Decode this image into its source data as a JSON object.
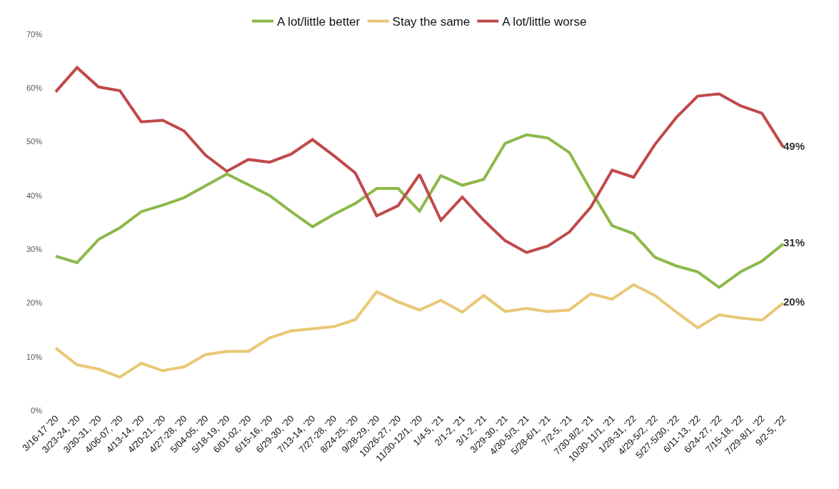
{
  "chart_data": {
    "type": "line",
    "categories": [
      "3/16-17 '20",
      "3/23-24, '20",
      "3/30-31, '20",
      "4/06-07, '20",
      "4/13-14, '20",
      "4/20-21, '20",
      "4/27-28, '20",
      "5/04-05, '20",
      "5/18-19, '20",
      "6/01-02, '20",
      "6/15-16, '20",
      "6/29-30, '20",
      "7/13-14, '20",
      "7/27-28, '20",
      "8/24-25, '20",
      "9/28-29, '20",
      "10/26-27, '20",
      "11/30-12/1, '20",
      "1/4-5, '21",
      "2/1-2, '21",
      "3/1-2, '21",
      "3/29-30, '21",
      "4/30-5/3, '21",
      "5/28-6/1, '21",
      "7/2-5, '21",
      "7/30-8/2, '21",
      "10/30-11/1, '21",
      "1/28-31, '22",
      "4/29-5/2, '22",
      "5/27-5/30, '22",
      "6/11-13, '22",
      "6/24-27, '22",
      "7/15-18, '22",
      "7/29-8/1, '22",
      "9/2-5, '22"
    ],
    "series": [
      {
        "name": "A lot/little better",
        "color": "#8db84a",
        "values": [
          28.7,
          27.5,
          31.8,
          34,
          37,
          38.2,
          39.6,
          41.8,
          44,
          42,
          40,
          37,
          34.2,
          36.5,
          38.5,
          41.3,
          41.3,
          37.1,
          43.7,
          41.9,
          43,
          49.7,
          51.3,
          50.7,
          48,
          41,
          34.4,
          32.9,
          28.5,
          26.9,
          25.8,
          22.9,
          25.8,
          27.8,
          31
        ],
        "value_labels": [
          null,
          null,
          null,
          null,
          null,
          null,
          null,
          null,
          null,
          null,
          null,
          null,
          null,
          null,
          null,
          null,
          null,
          null,
          null,
          null,
          null,
          null,
          null,
          null,
          null,
          null,
          null,
          null,
          null,
          null,
          null,
          null,
          null,
          null,
          "31%"
        ]
      },
      {
        "name": "Stay the same",
        "color": "#e9c876",
        "values": [
          11.6,
          8.5,
          7.7,
          6.2,
          8.8,
          7.4,
          8.1,
          10.4,
          11,
          11,
          13.5,
          14.8,
          15.2,
          15.6,
          16.9,
          22.1,
          20.2,
          18.7,
          20.5,
          18.3,
          21.4,
          18.4,
          19,
          18.4,
          18.7,
          21.7,
          20.7,
          23.4,
          21.4,
          18.3,
          15.4,
          17.8,
          17.2,
          16.8,
          20
        ],
        "value_labels": [
          null,
          null,
          null,
          null,
          null,
          null,
          null,
          null,
          null,
          null,
          null,
          null,
          null,
          null,
          null,
          null,
          null,
          null,
          null,
          null,
          null,
          null,
          null,
          null,
          null,
          null,
          null,
          null,
          null,
          null,
          null,
          null,
          null,
          null,
          "20%"
        ]
      },
      {
        "name": "A lot/little worse",
        "color": "#c0494b",
        "values": [
          59.3,
          63.8,
          60.2,
          59.5,
          53.7,
          54,
          52,
          47.5,
          44.5,
          46.7,
          46.2,
          47.7,
          50.4,
          47.4,
          44.2,
          36.2,
          38.1,
          43.9,
          35.4,
          39.7,
          35.4,
          31.6,
          29.4,
          30.6,
          33.2,
          37.8,
          44.7,
          43.4,
          49.5,
          54.5,
          58.5,
          58.9,
          56.7,
          55.3,
          49
        ],
        "value_labels": [
          null,
          null,
          null,
          null,
          null,
          null,
          null,
          null,
          null,
          null,
          null,
          null,
          null,
          null,
          null,
          null,
          null,
          null,
          null,
          null,
          null,
          null,
          null,
          null,
          null,
          null,
          null,
          null,
          null,
          null,
          null,
          null,
          null,
          null,
          "49%"
        ]
      }
    ],
    "ylim": [
      0,
      70
    ],
    "yticks": [
      {
        "value": 0,
        "label": "0%"
      },
      {
        "value": 10,
        "label": "10%"
      },
      {
        "value": 20,
        "label": "20%"
      },
      {
        "value": 30,
        "label": "30%"
      },
      {
        "value": 40,
        "label": "40%"
      },
      {
        "value": 50,
        "label": "50%"
      },
      {
        "value": 60,
        "label": "60%"
      },
      {
        "value": 70,
        "label": "70%"
      }
    ],
    "legend": "top",
    "marker": "none",
    "line_style": "solid"
  }
}
